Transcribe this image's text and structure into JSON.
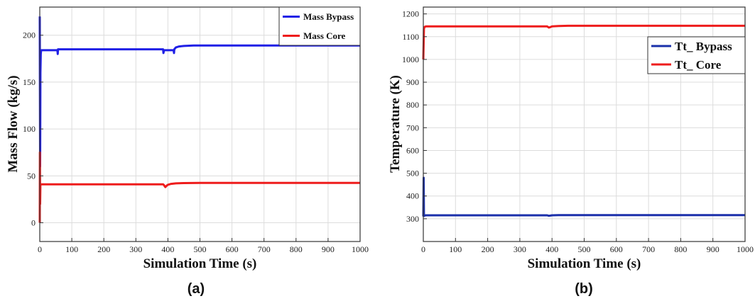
{
  "chart_data": [
    {
      "type": "line",
      "caption": "(a)",
      "xlabel": "Simulation Time (s)",
      "ylabel": "Mass Flow (kg/s)",
      "xlim": [
        0,
        1000
      ],
      "ylim": [
        -20,
        230
      ],
      "xticks": [
        0,
        100,
        200,
        300,
        400,
        500,
        600,
        700,
        800,
        900,
        1000
      ],
      "yticks": [
        0,
        50,
        100,
        150,
        200
      ],
      "grid": true,
      "legend_position": "top-right",
      "series": [
        {
          "name": "Mass Bypass",
          "color": "#1f1fe6",
          "x": [
            0,
            0.5,
            1,
            2,
            3,
            4,
            5,
            55,
            56,
            57,
            60,
            385,
            386,
            388,
            392,
            395,
            398,
            418,
            419,
            420,
            425,
            435,
            450,
            480,
            520,
            600,
            1000
          ],
          "y": [
            220,
            150,
            60,
            160,
            180,
            183,
            184,
            184,
            180,
            185,
            185,
            185,
            181,
            184,
            184,
            184,
            184,
            184,
            181,
            185,
            187,
            188,
            188.5,
            189,
            189,
            189,
            189
          ]
        },
        {
          "name": "Mass Core",
          "color": "#ee1c1c",
          "x": [
            0,
            0.5,
            1,
            2,
            4,
            6,
            385,
            388,
            392,
            396,
            400,
            410,
            425,
            450,
            500,
            600,
            1000
          ],
          "y": [
            0,
            75,
            20,
            40,
            41,
            41,
            41,
            40,
            38,
            39.5,
            40.5,
            41.5,
            42,
            42.3,
            42.5,
            42.5,
            42.5
          ]
        }
      ]
    },
    {
      "type": "line",
      "caption": "(b)",
      "xlabel": "Simulation Time (s)",
      "ylabel": "Temperature (K)",
      "xlim": [
        0,
        1000
      ],
      "ylim": [
        200,
        1230
      ],
      "xticks": [
        0,
        100,
        200,
        300,
        400,
        500,
        600,
        700,
        800,
        900,
        1000
      ],
      "yticks": [
        300,
        400,
        500,
        600,
        700,
        800,
        900,
        1000,
        1100,
        1200
      ],
      "grid": true,
      "legend_position": "top-right",
      "series": [
        {
          "name": "Tt_ Bypass",
          "color": "#1a2faa",
          "x": [
            0,
            1,
            2,
            4,
            8,
            385,
            390,
            395,
            400,
            420,
            450,
            1000
          ],
          "y": [
            310,
            480,
            312,
            314,
            315,
            315,
            313,
            314,
            315,
            316,
            316,
            316
          ]
        },
        {
          "name": "Tt_ Core",
          "color": "#ee1c1c",
          "x": [
            0,
            2,
            4,
            8,
            20,
            385,
            390,
            395,
            400,
            420,
            450,
            500,
            1000
          ],
          "y": [
            1000,
            1135,
            1143,
            1145,
            1145,
            1145,
            1140,
            1142,
            1145,
            1147,
            1148,
            1148,
            1148
          ]
        }
      ]
    }
  ]
}
